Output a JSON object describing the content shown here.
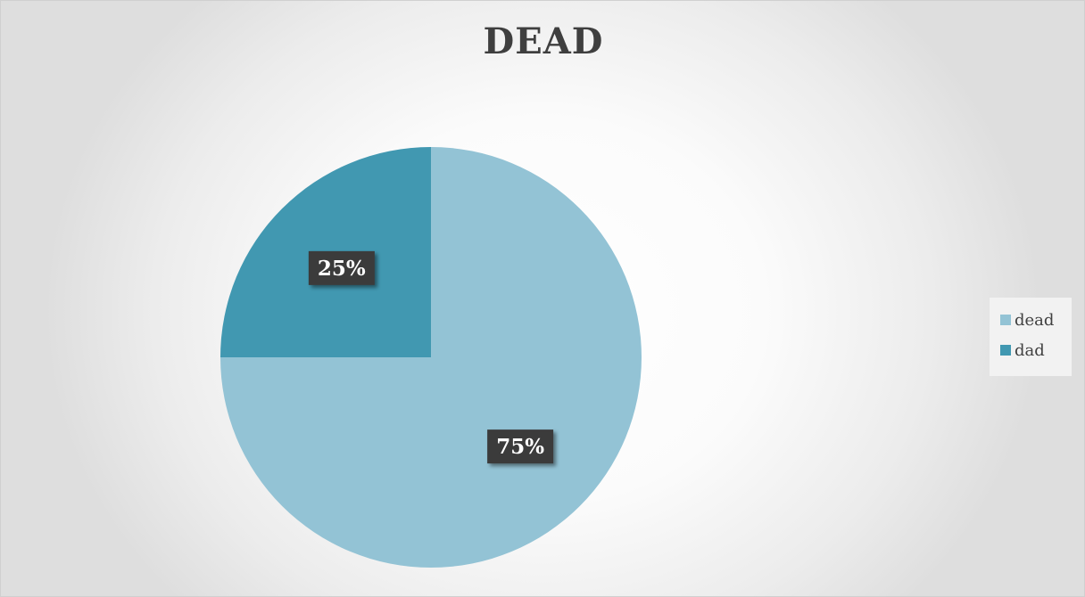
{
  "chart_data": {
    "type": "pie",
    "title": "DEAD",
    "slices": [
      {
        "label": "dead",
        "value": 75,
        "data_label": "75%",
        "color": "#93C3D5"
      },
      {
        "label": "dad",
        "value": 25,
        "data_label": "25%",
        "color": "#4198B1"
      }
    ],
    "start_angle_deg": 0,
    "direction": "clockwise",
    "legend_position": "right",
    "data_label_style": {
      "background": "#3a3a3a",
      "text_color": "#ffffff"
    }
  }
}
